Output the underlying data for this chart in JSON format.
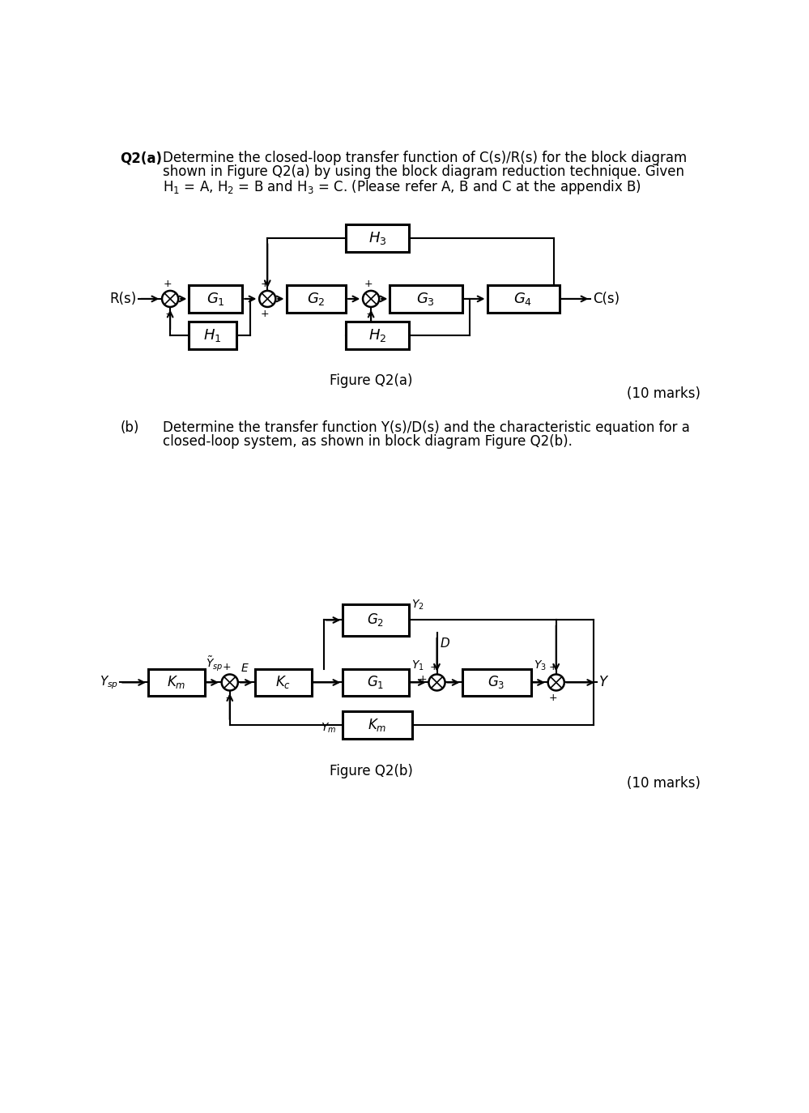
{
  "bg_color": "#ffffff",
  "line_color": "#000000",
  "fig_caption_a": "Figure Q2(a)",
  "fig_caption_b": "Figure Q2(b)",
  "marks_a": "(10 marks)",
  "marks_b": "(10 marks)"
}
